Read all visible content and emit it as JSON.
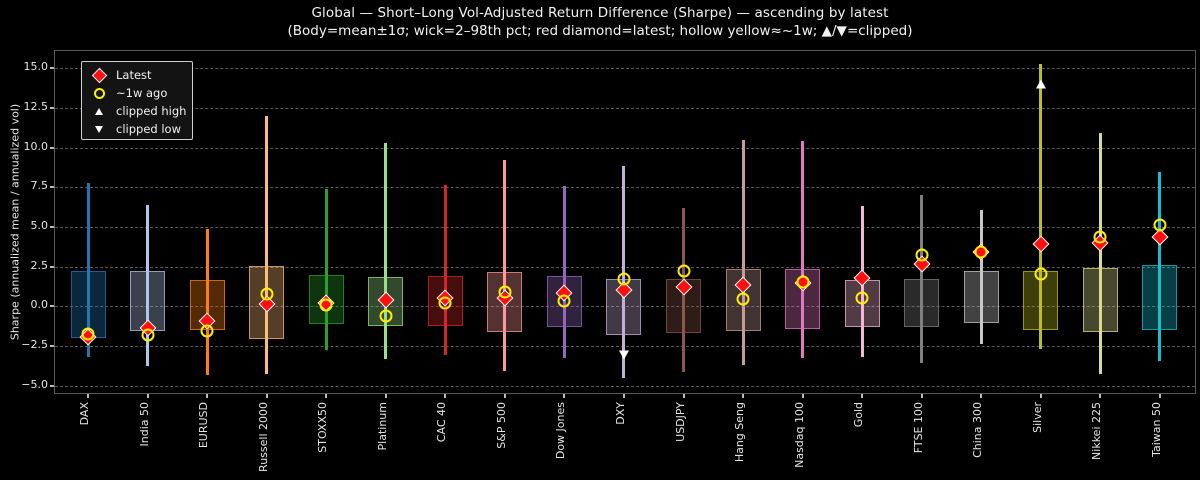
{
  "header": {
    "title": "Global — Short–Long Vol-Adjusted Return Difference (Sharpe) — ascending by latest",
    "subtitle": "(Body=mean±1σ; wick=2–98th pct; red diamond=latest; hollow yellow≈~1w; ▲/▼=clipped)"
  },
  "legend": {
    "items": [
      {
        "label": "Latest",
        "marker": "red-diamond-icon"
      },
      {
        "label": "~1w ago",
        "marker": "yellow-hollow-circle-icon"
      },
      {
        "label": "clipped high",
        "marker": "up-triangle-icon"
      },
      {
        "label": "clipped low",
        "marker": "down-triangle-icon"
      }
    ]
  },
  "chart_data": {
    "type": "boxplot-candlestick",
    "title": "Global — Short–Long Vol-Adjusted Return Difference (Sharpe) — ascending by latest",
    "subtitle": "(Body=mean±1σ; wick=2–98th pct; red diamond=latest; hollow yellow≈~1w; ▲/▼=clipped)",
    "ylabel": "Sharpe (annualized mean / annualized vol)",
    "xlabel": "",
    "ylim": [
      -5.47,
      16.1
    ],
    "yticks": [
      15.0,
      12.5,
      10.0,
      7.5,
      5.0,
      2.5,
      0.0,
      -2.5,
      -5.0
    ],
    "grid": "horizontal-dashed",
    "legend_position": "upper-left",
    "marker_colors": {
      "latest": "#ff0f0f",
      "week_ago": "#ffee00",
      "clipped": "#ffffff"
    },
    "categories": [
      "DAX",
      "India 50",
      "EURUSD",
      "Russell 2000",
      "STOXX50",
      "Platinum",
      "CAC 40",
      "S&P 500",
      "Dow Jones",
      "DXY",
      "USDJPY",
      "Hang Seng",
      "Nasdaq 100",
      "Gold",
      "FTSE 100",
      "China 300",
      "Silver",
      "Nikkei 225",
      "Taiwan 50"
    ],
    "series": [
      {
        "name": "DAX",
        "color": "#1f77b4",
        "wick_high": 7.8,
        "wick_low": -3.2,
        "body_high": 2.2,
        "body_low": -2.0,
        "latest": -1.95,
        "week_ago": -1.75
      },
      {
        "name": "India 50",
        "color": "#aec7e8",
        "wick_high": 6.4,
        "wick_low": -3.75,
        "body_high": 2.2,
        "body_low": -1.55,
        "latest": -1.4,
        "week_ago": -1.8
      },
      {
        "name": "EURUSD",
        "color": "#ff7f0e",
        "wick_high": 4.9,
        "wick_low": -4.35,
        "body_high": 1.65,
        "body_low": -1.5,
        "latest": -0.95,
        "week_ago": -1.55
      },
      {
        "name": "Russell 2000",
        "color": "#ffbb78",
        "wick_high": 12.0,
        "wick_low": -4.3,
        "body_high": 2.55,
        "body_low": -2.05,
        "latest": 0.15,
        "week_ago": 0.8
      },
      {
        "name": "STOXX50",
        "color": "#2ca02c",
        "wick_high": 7.4,
        "wick_low": -2.75,
        "body_high": 1.95,
        "body_low": -1.1,
        "latest": 0.2,
        "week_ago": 0.1
      },
      {
        "name": "Platinum",
        "color": "#98df8a",
        "wick_high": 10.3,
        "wick_low": -3.3,
        "body_high": 1.85,
        "body_low": -1.25,
        "latest": 0.38,
        "week_ago": -0.6
      },
      {
        "name": "CAC 40",
        "color": "#d62728",
        "wick_high": 7.65,
        "wick_low": -3.05,
        "body_high": 1.9,
        "body_low": -1.25,
        "latest": 0.5,
        "week_ago": 0.2
      },
      {
        "name": "S&P 500",
        "color": "#ff9896",
        "wick_high": 9.2,
        "wick_low": -4.1,
        "body_high": 2.15,
        "body_low": -1.6,
        "latest": 0.55,
        "week_ago": 0.9
      },
      {
        "name": "Dow Jones",
        "color": "#9467bd",
        "wick_high": 7.6,
        "wick_low": -3.25,
        "body_high": 1.9,
        "body_low": -1.3,
        "latest": 0.85,
        "week_ago": 0.35
      },
      {
        "name": "DXY",
        "color": "#c5b0d5",
        "wick_high": 8.85,
        "wick_low": -4.55,
        "body_high": 1.75,
        "body_low": -1.8,
        "latest": 1.0,
        "week_ago": 1.7,
        "clip_low": -3.05
      },
      {
        "name": "USDJPY",
        "color": "#8c564b",
        "wick_high": 6.2,
        "wick_low": -4.15,
        "body_high": 1.7,
        "body_low": -1.7,
        "latest": 1.2,
        "week_ago": 2.2
      },
      {
        "name": "Hang Seng",
        "color": "#c49c94",
        "wick_high": 10.5,
        "wick_low": -3.7,
        "body_high": 2.35,
        "body_low": -1.55,
        "latest": 1.35,
        "week_ago": 0.45
      },
      {
        "name": "Nasdaq 100",
        "color": "#e377c2",
        "wick_high": 10.4,
        "wick_low": -3.25,
        "body_high": 2.35,
        "body_low": -1.45,
        "latest": 1.45,
        "week_ago": 1.55
      },
      {
        "name": "Gold",
        "color": "#f7b6d2",
        "wick_high": 6.35,
        "wick_low": -3.2,
        "body_high": 1.65,
        "body_low": -1.3,
        "latest": 1.8,
        "week_ago": 0.55
      },
      {
        "name": "FTSE 100",
        "color": "#7f7f7f",
        "wick_high": 7.0,
        "wick_low": -3.55,
        "body_high": 1.75,
        "body_low": -1.3,
        "latest": 2.65,
        "week_ago": 3.25
      },
      {
        "name": "China 300",
        "color": "#c7c7c7",
        "wick_high": 6.1,
        "wick_low": -2.4,
        "body_high": 2.25,
        "body_low": -1.05,
        "latest": 3.4,
        "week_ago": 3.45
      },
      {
        "name": "Silver",
        "color": "#bcbd22",
        "wick_high": 15.3,
        "wick_low": -2.7,
        "body_high": 2.25,
        "body_low": -1.5,
        "latest": 3.9,
        "week_ago": 2.05,
        "clip_high": 14.0
      },
      {
        "name": "Nikkei 225",
        "color": "#dbdb8d",
        "wick_high": 10.9,
        "wick_low": -4.3,
        "body_high": 2.4,
        "body_low": -1.6,
        "latest": 4.0,
        "week_ago": 4.4
      },
      {
        "name": "Taiwan 50",
        "color": "#17becf",
        "wick_high": 8.45,
        "wick_low": -3.45,
        "body_high": 2.6,
        "body_low": -1.5,
        "latest": 4.35,
        "week_ago": 5.15
      }
    ]
  }
}
